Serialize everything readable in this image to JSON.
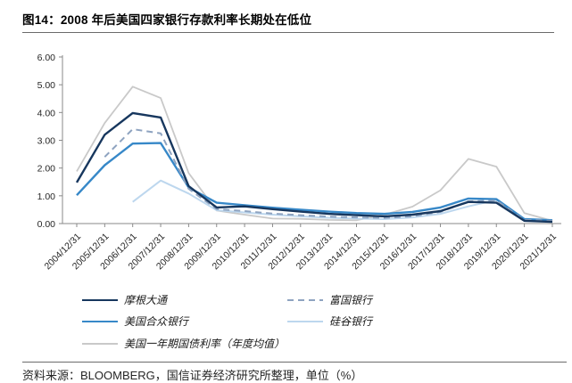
{
  "header": {
    "title": "图14：2008 年后美国四家银行存款利率长期处在低位"
  },
  "footer": {
    "source": "资料来源：BLOOMBERG，国信证券经济研究所整理，单位（%）"
  },
  "chart_data": {
    "type": "line",
    "title": "图14：2008 年后美国四家银行存款利率长期处在低位",
    "unit": "%",
    "xlabel": "",
    "ylabel": "",
    "ylim": [
      0,
      6
    ],
    "ytick_labels": [
      "0.00",
      "1.00",
      "2.00",
      "3.00",
      "4.00",
      "5.00",
      "6.00"
    ],
    "grid": false,
    "legend_position": "bottom",
    "categories": [
      "2004/12/31",
      "2005/12/31",
      "2006/12/31",
      "2007/12/31",
      "2008/12/31",
      "2009/12/31",
      "2010/12/31",
      "2011/12/31",
      "2012/12/31",
      "2013/12/31",
      "2014/12/31",
      "2015/12/31",
      "2016/12/31",
      "2017/12/31",
      "2018/12/31",
      "2019/12/31",
      "2020/12/31",
      "2021/12/31"
    ],
    "series": [
      {
        "name": "摩根大通",
        "color": "#17375E",
        "style": "solid",
        "width": 2.4,
        "values": [
          1.48,
          3.2,
          3.98,
          3.82,
          1.35,
          0.58,
          0.62,
          0.52,
          0.43,
          0.35,
          0.3,
          0.26,
          0.32,
          0.45,
          0.78,
          0.75,
          0.1,
          0.06
        ]
      },
      {
        "name": "富国银行",
        "color": "#8EA3C0",
        "style": "dashed",
        "dash": "7 5",
        "width": 2,
        "values": [
          null,
          2.4,
          3.4,
          3.25,
          1.25,
          0.52,
          0.45,
          0.36,
          0.3,
          0.25,
          0.22,
          0.2,
          0.26,
          0.42,
          0.8,
          0.83,
          0.13,
          0.1
        ]
      },
      {
        "name": "美国合众银行",
        "color": "#3788C8",
        "style": "solid",
        "width": 2.4,
        "values": [
          1.02,
          2.1,
          2.88,
          2.9,
          1.3,
          0.75,
          0.66,
          0.57,
          0.5,
          0.43,
          0.38,
          0.35,
          0.42,
          0.58,
          0.9,
          0.88,
          0.16,
          0.12
        ]
      },
      {
        "name": "硅谷银行",
        "color": "#BDD7EE",
        "style": "solid",
        "width": 2,
        "values": [
          null,
          null,
          0.78,
          1.55,
          1.08,
          0.48,
          0.4,
          0.32,
          0.26,
          0.21,
          0.18,
          0.16,
          0.22,
          0.35,
          0.62,
          0.85,
          0.16,
          0.13
        ]
      },
      {
        "name": "美国一年期国债利率（年度均值）",
        "color": "#C9C9C9",
        "style": "solid",
        "width": 1.8,
        "values": [
          1.88,
          3.62,
          4.93,
          4.52,
          1.82,
          0.47,
          0.32,
          0.18,
          0.17,
          0.13,
          0.12,
          0.32,
          0.61,
          1.2,
          2.33,
          2.05,
          0.38,
          0.1
        ]
      }
    ]
  }
}
